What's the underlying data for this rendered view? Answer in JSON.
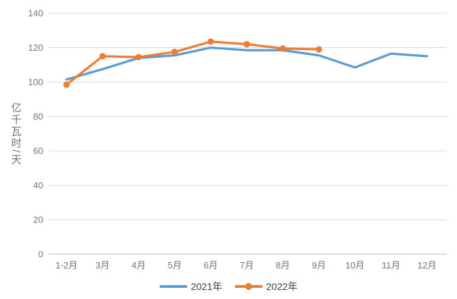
{
  "chart_data": {
    "type": "line",
    "title": "",
    "ylabel": "亿千瓦时/天",
    "xlabel": "",
    "categories": [
      "1-2月",
      "3月",
      "4月",
      "5月",
      "6月",
      "7月",
      "8月",
      "9月",
      "10月",
      "11月",
      "12月"
    ],
    "series": [
      {
        "name": "2021年",
        "color": "#5B9BD5",
        "marker": "none",
        "values": [
          101.5,
          107.5,
          114,
          115.5,
          120,
          118.5,
          118.5,
          115.5,
          108.5,
          116.5,
          115
        ]
      },
      {
        "name": "2022年",
        "color": "#ED7D31",
        "marker": "circle",
        "values": [
          98.5,
          115,
          114.5,
          117.5,
          123.5,
          122,
          119.5,
          119
        ]
      }
    ],
    "ylim": [
      0,
      140
    ],
    "yticks": [
      0,
      20,
      40,
      60,
      80,
      100,
      120,
      140
    ],
    "grid": true,
    "legend_position": "bottom"
  },
  "colors": {
    "background": "#FFFFFF",
    "gridline": "#D9D9D9",
    "axis_line": "#BFBFBF",
    "tick_text": "#757575",
    "legend_text": "#404040",
    "series_2021": "#5B9BD5",
    "series_2022": "#ED7D31"
  }
}
